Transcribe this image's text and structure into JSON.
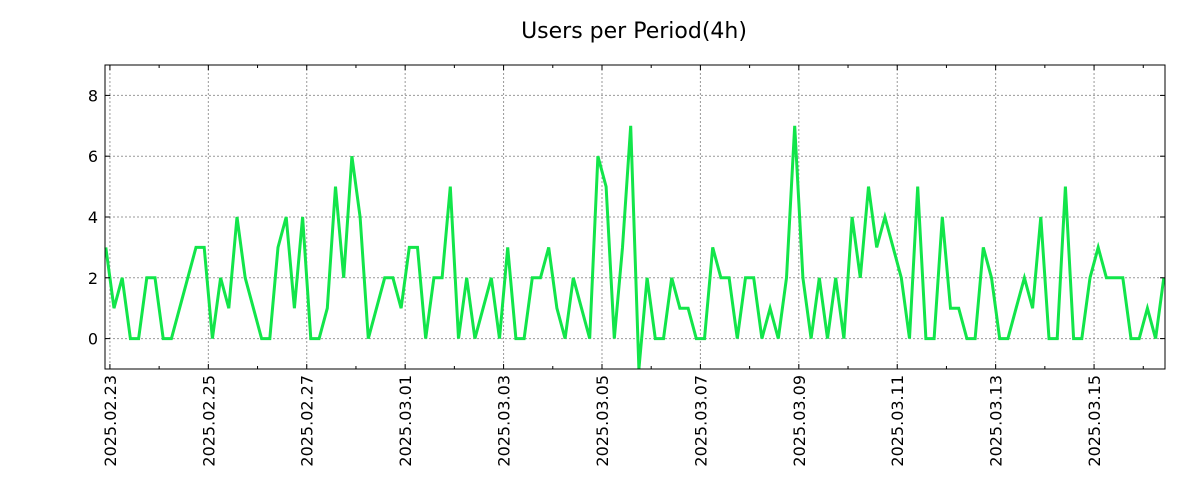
{
  "chart_data": {
    "type": "line",
    "title": "Users per Period(4h)",
    "xlabel": "",
    "ylabel": "",
    "x_unit": "hours since 2025.02.23 00:00",
    "x_start": -2,
    "x_step": 4,
    "xlim": [
      -2.4,
      514.6
    ],
    "ylim": [
      -1,
      9
    ],
    "grid": true,
    "line_color": "#12e54a",
    "yticks": [
      0,
      2,
      4,
      6,
      8
    ],
    "xticks": [
      {
        "value": 0,
        "label": "2025.02.23"
      },
      {
        "value": 48,
        "label": "2025.02.25"
      },
      {
        "value": 96,
        "label": "2025.02.27"
      },
      {
        "value": 144,
        "label": "2025.03.01"
      },
      {
        "value": 192,
        "label": "2025.03.03"
      },
      {
        "value": 240,
        "label": "2025.03.05"
      },
      {
        "value": 288,
        "label": "2025.03.07"
      },
      {
        "value": 336,
        "label": "2025.03.09"
      },
      {
        "value": 384,
        "label": "2025.03.11"
      },
      {
        "value": 432,
        "label": "2025.03.13"
      },
      {
        "value": 480,
        "label": "2025.03.15"
      }
    ],
    "series": [
      {
        "name": "Users",
        "values": [
          3,
          1,
          2,
          0,
          0,
          2,
          2,
          0,
          0,
          1,
          2,
          3,
          3,
          0,
          2,
          1,
          4,
          2,
          1,
          0,
          0,
          3,
          4,
          1,
          4,
          0,
          0,
          1,
          5,
          2,
          6,
          4,
          0,
          1,
          2,
          2,
          1,
          3,
          3,
          0,
          2,
          2,
          5,
          0,
          2,
          0,
          1,
          2,
          0,
          3,
          0,
          0,
          2,
          2,
          3,
          1,
          0,
          2,
          1,
          0,
          6,
          5,
          0,
          3,
          7,
          -1,
          2,
          0,
          0,
          2,
          1,
          1,
          0,
          0,
          3,
          2,
          2,
          0,
          2,
          2,
          0,
          1,
          0,
          2,
          7,
          2,
          0,
          2,
          0,
          2,
          0,
          4,
          2,
          5,
          3,
          4,
          3,
          2,
          0,
          5,
          0,
          0,
          4,
          1,
          1,
          0,
          0,
          3,
          2,
          0,
          0,
          1,
          2,
          1,
          4,
          0,
          0,
          5,
          0,
          0,
          2,
          3,
          2,
          2,
          2,
          0,
          0,
          1,
          0,
          2
        ]
      }
    ]
  }
}
